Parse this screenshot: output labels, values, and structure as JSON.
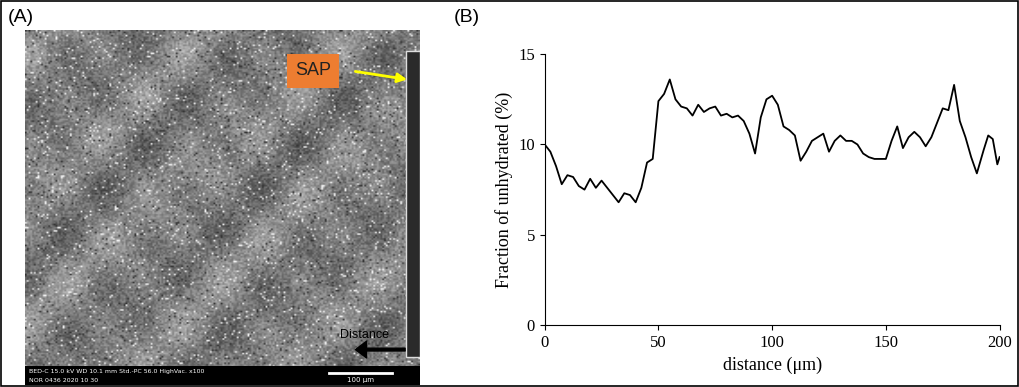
{
  "panel_a": {
    "label": "(A)",
    "annotation": "SAP",
    "arrow_label": "Distance",
    "scale_bar": "100 μm",
    "info_bar": [
      "BED-C 15.0 kV WD 10.1 mm Std.-PC 56.0 HighVac. x100",
      "NOR 0436 2020 10 30"
    ]
  },
  "chart_data": {
    "type": "line",
    "title": "(B)",
    "x_label": "distance (μm)",
    "y_label": "Fraction of unhydrated (%)",
    "x": [
      0,
      2.5,
      5,
      7.5,
      10,
      12.5,
      15,
      17.5,
      20,
      22.5,
      25,
      27.5,
      30,
      32.5,
      35,
      37.5,
      40,
      42.5,
      45,
      47.5,
      50,
      52.5,
      55,
      57.5,
      60,
      62.5,
      65,
      67.5,
      70,
      72.5,
      75,
      77.5,
      80,
      82.5,
      85,
      87.5,
      90,
      92.5,
      95,
      97.5,
      100,
      102.5,
      105,
      107.5,
      110,
      112.5,
      115,
      117.5,
      120,
      122.5,
      125,
      127.5,
      130,
      132.5,
      135,
      137.5,
      140,
      142.5,
      145,
      147.5,
      150,
      152.5,
      155,
      157.5,
      160,
      162.5,
      165,
      167.5,
      170,
      172.5,
      175,
      177.5,
      180,
      182.5,
      185,
      187.5,
      190,
      193,
      195,
      197,
      199,
      200
    ],
    "values": [
      10.0,
      9.6,
      8.8,
      7.8,
      8.3,
      8.2,
      7.7,
      7.5,
      8.1,
      7.6,
      8.0,
      7.6,
      7.2,
      6.8,
      7.3,
      7.2,
      6.8,
      7.6,
      9.0,
      9.2,
      12.4,
      12.8,
      13.6,
      12.5,
      12.1,
      12.0,
      11.6,
      12.2,
      11.8,
      12.0,
      12.1,
      11.6,
      11.7,
      11.5,
      11.6,
      11.3,
      10.6,
      9.5,
      11.5,
      12.5,
      12.7,
      12.2,
      11.0,
      10.8,
      10.5,
      9.1,
      9.6,
      10.2,
      10.4,
      10.6,
      9.6,
      10.2,
      10.5,
      10.2,
      10.2,
      10.0,
      9.5,
      9.3,
      9.2,
      9.2,
      9.2,
      10.2,
      11.0,
      9.8,
      10.4,
      10.7,
      10.4,
      9.9,
      10.4,
      11.2,
      12.0,
      11.9,
      13.3,
      11.3,
      10.4,
      9.3,
      8.4,
      9.7,
      10.5,
      10.3,
      8.9,
      9.3
    ],
    "color": "#000000",
    "xlim": [
      0,
      200
    ],
    "xticks": [
      0,
      50,
      100,
      150,
      200
    ],
    "ylim": [
      0,
      15
    ],
    "yticks": [
      0,
      5,
      10,
      15
    ]
  }
}
